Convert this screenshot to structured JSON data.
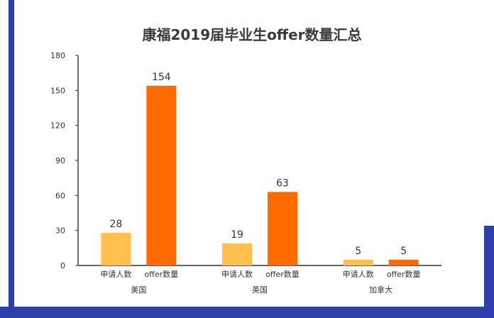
{
  "chart_data": {
    "type": "bar",
    "title": "康福2019届毕业生offer数量汇总",
    "groups": [
      "美国",
      "英国",
      "加拿大"
    ],
    "series": [
      {
        "name": "申请人数",
        "values": [
          28,
          19,
          5
        ]
      },
      {
        "name": "offer数量",
        "values": [
          154,
          63,
          5
        ]
      }
    ],
    "y_ticks": [
      "0",
      "30",
      "60",
      "90",
      "120",
      "150",
      "180"
    ],
    "ylim": [
      0,
      180
    ],
    "grid": false,
    "colors": {
      "series_0": "#FFC04D",
      "series_1": "#FF6A00",
      "frame": "#2F3FA9",
      "axis": "#333333"
    }
  }
}
